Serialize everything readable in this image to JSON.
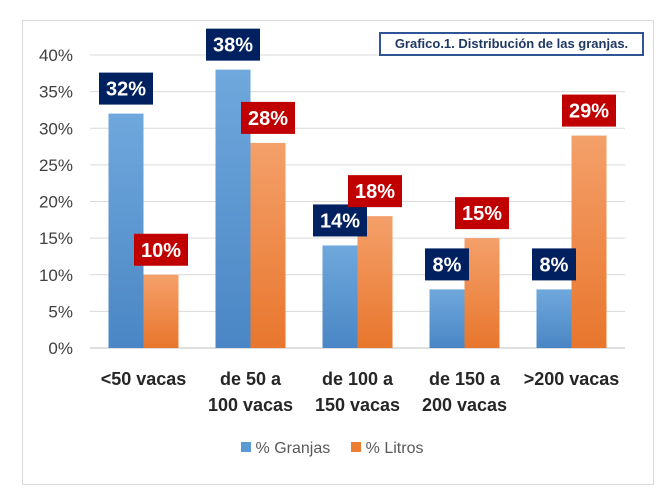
{
  "chart_data": {
    "type": "bar",
    "title": "Grafico.1. Distribución de las granjas.",
    "categories": [
      [
        "<50 vacas"
      ],
      [
        "de 50 a",
        "100 vacas"
      ],
      [
        "de 100 a",
        "150 vacas"
      ],
      [
        "de 150 a",
        "200 vacas"
      ],
      [
        ">200 vacas"
      ]
    ],
    "series": [
      {
        "name": "% Granjas",
        "values": [
          32,
          38,
          14,
          8,
          8
        ],
        "labels": [
          "32%",
          "38%",
          "14%",
          "8%",
          "8%"
        ],
        "color": "#5b9bd5",
        "label_bg": "#002060"
      },
      {
        "name": "% Litros",
        "values": [
          10,
          28,
          18,
          15,
          29
        ],
        "labels": [
          "10%",
          "28%",
          "18%",
          "15%",
          "29%"
        ],
        "color": "#ed7d31",
        "label_bg": "#c00000"
      }
    ],
    "ylim": [
      0,
      40
    ],
    "yticks": [
      "0%",
      "5%",
      "10%",
      "15%",
      "20%",
      "25%",
      "30%",
      "35%",
      "40%"
    ],
    "grid": true,
    "legend_position": "bottom"
  },
  "legend": {
    "granjas": "% Granjas",
    "litros": "% Litros"
  }
}
